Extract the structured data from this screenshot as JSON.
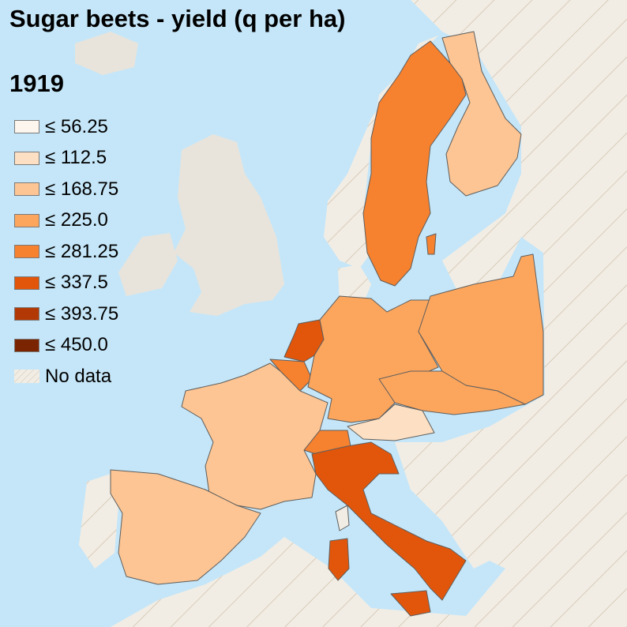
{
  "title": "Sugar beets - yield (q per ha)",
  "year": "1919",
  "legend": [
    {
      "label": "≤ 56.25",
      "color": "#fdf6ef"
    },
    {
      "label": "≤ 112.5",
      "color": "#fde0c3"
    },
    {
      "label": "≤ 168.75",
      "color": "#fdc593"
    },
    {
      "label": "≤ 225.0",
      "color": "#fca65d"
    },
    {
      "label": "≤ 281.25",
      "color": "#f6812f"
    },
    {
      "label": "≤ 337.5",
      "color": "#e2560b"
    },
    {
      "label": "≤ 393.75",
      "color": "#b23905"
    },
    {
      "label": "≤ 450.0",
      "color": "#7b2402"
    }
  ],
  "no_data_label": "No data",
  "colors": {
    "sea": "#c5e6f8",
    "non_eu_land": "#e8e4dc",
    "no_data_fill": "#f2ede4",
    "border": "#5e5e5e"
  },
  "regions": [
    {
      "name": "Sweden",
      "class": "≤ 281.25"
    },
    {
      "name": "Finland",
      "class": "≤ 168.75"
    },
    {
      "name": "Germany",
      "class": "≤ 225.0"
    },
    {
      "name": "Poland",
      "class": "≤ 225.0"
    },
    {
      "name": "Czechoslovakia",
      "class": "≤ 225.0"
    },
    {
      "name": "Austria",
      "class": "≤ 112.5"
    },
    {
      "name": "Netherlands",
      "class": "≤ 337.5"
    },
    {
      "name": "Belgium",
      "class": "≤ 281.25"
    },
    {
      "name": "France",
      "class": "≤ 168.75"
    },
    {
      "name": "Spain",
      "class": "≤ 168.75"
    },
    {
      "name": "Switzerland",
      "class": "≤ 281.25"
    },
    {
      "name": "Italy",
      "class": "≤ 337.5"
    }
  ]
}
